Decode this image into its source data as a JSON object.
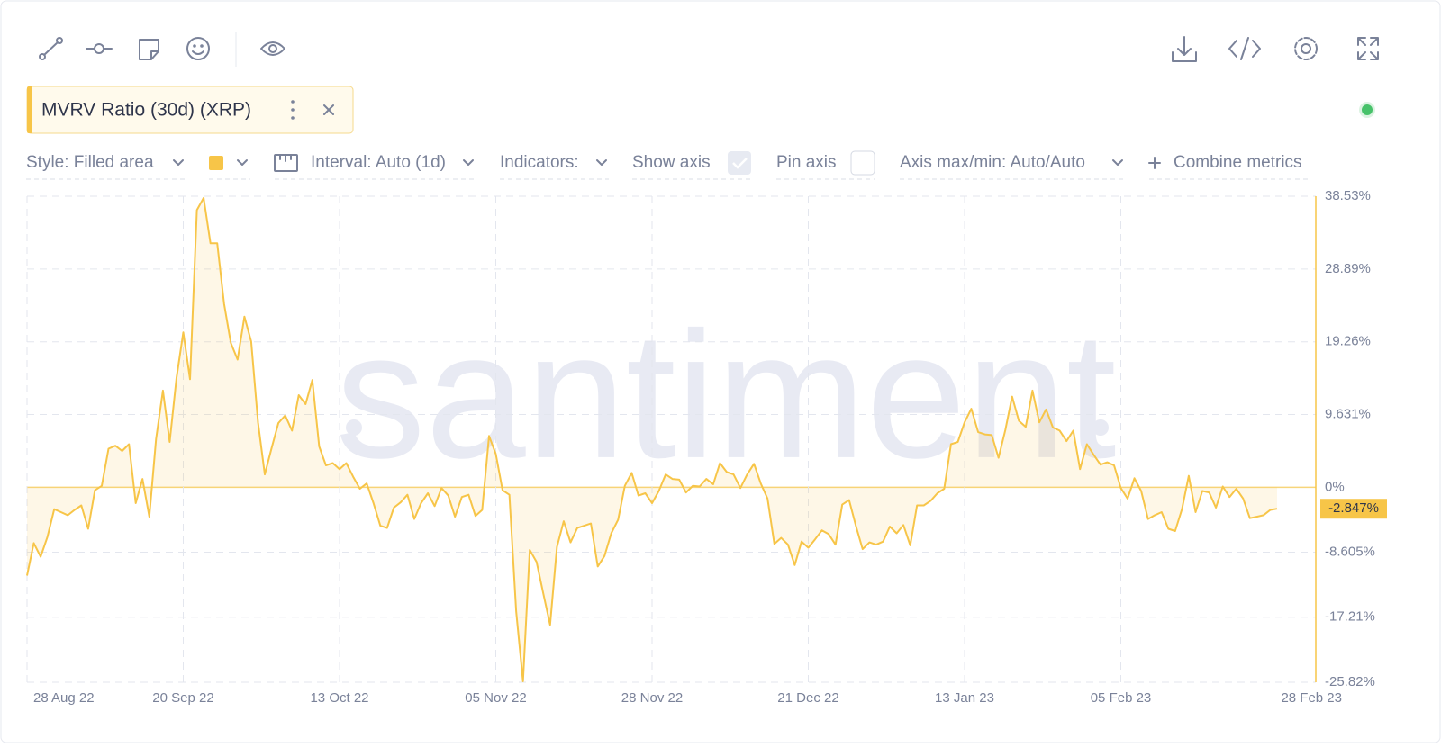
{
  "ui": {
    "metric": "MVRV Ratio (30d) (XRP)",
    "controls": [
      "Style: Filled area",
      "Interval: Auto (1d)",
      "Indicators:",
      "Show axis",
      "Pin axis",
      "Axis max/min: Auto/Auto",
      "Combine metrics"
    ],
    "watermark": "santiment"
  },
  "chart_data": {
    "type": "area",
    "x": [
      "2022-08-28",
      "2022-08-29",
      "2022-08-30",
      "2022-08-31",
      "2022-09-01",
      "2022-09-02",
      "2022-09-03",
      "2022-09-04",
      "2022-09-05",
      "2022-09-06",
      "2022-09-07",
      "2022-09-08",
      "2022-09-09",
      "2022-09-10",
      "2022-09-11",
      "2022-09-12",
      "2022-09-13",
      "2022-09-14",
      "2022-09-15",
      "2022-09-16",
      "2022-09-17",
      "2022-09-18",
      "2022-09-19",
      "2022-09-20",
      "2022-09-21",
      "2022-09-22",
      "2022-09-23",
      "2022-09-24",
      "2022-09-25",
      "2022-09-26",
      "2022-09-27",
      "2022-09-28",
      "2022-09-29",
      "2022-09-30",
      "2022-10-01",
      "2022-10-02",
      "2022-10-03",
      "2022-10-04",
      "2022-10-05",
      "2022-10-06",
      "2022-10-07",
      "2022-10-08",
      "2022-10-09",
      "2022-10-10",
      "2022-10-11",
      "2022-10-12",
      "2022-10-13",
      "2022-10-14",
      "2022-10-15",
      "2022-10-16",
      "2022-10-17",
      "2022-10-18",
      "2022-10-19",
      "2022-10-20",
      "2022-10-21",
      "2022-10-22",
      "2022-10-23",
      "2022-10-24",
      "2022-10-25",
      "2022-10-26",
      "2022-10-27",
      "2022-10-28",
      "2022-10-29",
      "2022-10-30",
      "2022-10-31",
      "2022-11-01",
      "2022-11-02",
      "2022-11-03",
      "2022-11-04",
      "2022-11-05",
      "2022-11-06",
      "2022-11-07",
      "2022-11-08",
      "2022-11-09",
      "2022-11-10",
      "2022-11-11",
      "2022-11-12",
      "2022-11-13",
      "2022-11-14",
      "2022-11-15",
      "2022-11-16",
      "2022-11-17",
      "2022-11-18",
      "2022-11-19",
      "2022-11-20",
      "2022-11-21",
      "2022-11-22",
      "2022-11-23",
      "2022-11-24",
      "2022-11-25",
      "2022-11-26",
      "2022-11-27",
      "2022-11-28",
      "2022-11-29",
      "2022-11-30",
      "2022-12-01",
      "2022-12-02",
      "2022-12-03",
      "2022-12-04",
      "2022-12-05",
      "2022-12-06",
      "2022-12-07",
      "2022-12-08",
      "2022-12-09",
      "2022-12-10",
      "2022-12-11",
      "2022-12-12",
      "2022-12-13",
      "2022-12-14",
      "2022-12-15",
      "2022-12-16",
      "2022-12-17",
      "2022-12-18",
      "2022-12-19",
      "2022-12-20",
      "2022-12-21",
      "2022-12-22",
      "2022-12-23",
      "2022-12-24",
      "2022-12-25",
      "2022-12-26",
      "2022-12-27",
      "2022-12-28",
      "2022-12-29",
      "2022-12-30",
      "2022-12-31",
      "2023-01-01",
      "2023-01-02",
      "2023-01-03",
      "2023-01-04",
      "2023-01-05",
      "2023-01-06",
      "2023-01-07",
      "2023-01-08",
      "2023-01-09",
      "2023-01-10",
      "2023-01-11",
      "2023-01-12",
      "2023-01-13",
      "2023-01-14",
      "2023-01-15",
      "2023-01-16",
      "2023-01-17",
      "2023-01-18",
      "2023-01-19",
      "2023-01-20",
      "2023-01-21",
      "2023-01-22",
      "2023-01-23",
      "2023-01-24",
      "2023-01-25",
      "2023-01-26",
      "2023-01-27",
      "2023-01-28",
      "2023-01-29",
      "2023-01-30",
      "2023-01-31",
      "2023-02-01",
      "2023-02-02",
      "2023-02-03",
      "2023-02-04",
      "2023-02-05",
      "2023-02-06",
      "2023-02-07",
      "2023-02-08",
      "2023-02-09",
      "2023-02-10",
      "2023-02-11",
      "2023-02-12",
      "2023-02-13",
      "2023-02-14",
      "2023-02-15",
      "2023-02-16",
      "2023-02-17",
      "2023-02-18",
      "2023-02-19",
      "2023-02-20",
      "2023-02-21",
      "2023-02-22",
      "2023-02-23",
      "2023-02-24",
      "2023-02-25",
      "2023-02-26",
      "2023-02-27",
      "2023-02-28"
    ],
    "series": [
      {
        "name": "MVRV Ratio (30d) (XRP)",
        "color": "#f7c548",
        "current_label": "-2.847%",
        "values": [
          -11.7,
          -7.4,
          -9.2,
          -6.6,
          -2.9,
          -3.3,
          -3.7,
          -3.0,
          -2.4,
          -5.5,
          -0.4,
          0.2,
          5.1,
          5.5,
          4.8,
          5.7,
          -2.1,
          1.1,
          -3.9,
          6.4,
          12.8,
          6.0,
          14.5,
          20.5,
          14.3,
          36.7,
          38.3,
          32.3,
          32.3,
          24.3,
          19.1,
          16.9,
          22.6,
          19.3,
          8.6,
          1.7,
          5.2,
          8.5,
          9.5,
          7.5,
          12.2,
          11.0,
          14.2,
          5.4,
          2.9,
          3.2,
          2.4,
          3.2,
          1.4,
          -0.2,
          0.5,
          -2.1,
          -5.1,
          -5.4,
          -2.7,
          -2.0,
          -1.0,
          -4.2,
          -2.1,
          -0.8,
          -2.5,
          -0.1,
          -1.1,
          -3.9,
          -1.3,
          -1.0,
          -3.8,
          -3.0,
          6.8,
          4.4,
          -0.4,
          -1.0,
          -16.4,
          -25.7,
          -8.3,
          -9.9,
          -14.1,
          -18.2,
          -7.9,
          -4.5,
          -7.3,
          -5.4,
          -5.1,
          -4.8,
          -10.5,
          -9.1,
          -6.1,
          -4.3,
          0.2,
          1.9,
          -1.1,
          -0.8,
          -2.1,
          -0.5,
          1.7,
          1.1,
          1.0,
          -0.7,
          0.2,
          0.1,
          1.1,
          0.4,
          3.2,
          2.0,
          1.7,
          -0.1,
          1.7,
          3.1,
          0.5,
          -1.5,
          -7.5,
          -6.7,
          -7.6,
          -10.3,
          -7.2,
          -8.0,
          -6.9,
          -5.7,
          -6.2,
          -7.6,
          -2.3,
          -1.7,
          -5.1,
          -8.2,
          -7.3,
          -7.6,
          -7.2,
          -5.2,
          -6.1,
          -5.0,
          -7.7,
          -2.4,
          -2.4,
          -1.8,
          -0.8,
          -0.2,
          5.7,
          6.0,
          8.6,
          10.4,
          7.3,
          7.0,
          6.9,
          3.9,
          7.6,
          12.0,
          8.8,
          8.0,
          12.8,
          8.6,
          10.3,
          7.9,
          7.5,
          6.1,
          7.5,
          2.4,
          5.7,
          4.3,
          3.0,
          3.3,
          2.9,
          -0.1,
          -1.5,
          1.2,
          -0.5,
          -4.2,
          -3.7,
          -3.3,
          -5.5,
          -5.8,
          -2.9,
          1.5,
          -3.3,
          -0.5,
          -0.7,
          -2.7,
          0.1,
          -1.3,
          -0.2,
          -1.5,
          -4.1,
          -3.9,
          -3.7,
          -3.0,
          -2.847
        ]
      }
    ],
    "xlim": [
      "2022-08-28",
      "2023-02-28"
    ],
    "xticks": [
      {
        "value": "2022-08-28",
        "label": "28 Aug 22"
      },
      {
        "value": "2022-09-20",
        "label": "20 Sep 22"
      },
      {
        "value": "2022-10-13",
        "label": "13 Oct 22"
      },
      {
        "value": "2022-11-05",
        "label": "05 Nov 22"
      },
      {
        "value": "2022-11-28",
        "label": "28 Nov 22"
      },
      {
        "value": "2022-12-21",
        "label": "21 Dec 22"
      },
      {
        "value": "2023-01-13",
        "label": "13 Jan 23"
      },
      {
        "value": "2023-02-05",
        "label": "05 Feb 23"
      },
      {
        "value": "2023-02-28",
        "label": "28 Feb 23"
      }
    ],
    "ylim": [
      -25.82,
      38.53
    ],
    "yticks": [
      {
        "value": 38.53,
        "label": "38.53%"
      },
      {
        "value": 28.89,
        "label": "28.89%"
      },
      {
        "value": 19.26,
        "label": "19.26%"
      },
      {
        "value": 9.631,
        "label": "9.631%"
      },
      {
        "value": 0,
        "label": "0%"
      },
      {
        "value": -8.605,
        "label": "-8.605%"
      },
      {
        "value": -17.21,
        "label": "-17.21%"
      },
      {
        "value": -25.82,
        "label": "-25.82%"
      }
    ],
    "grid": true
  }
}
